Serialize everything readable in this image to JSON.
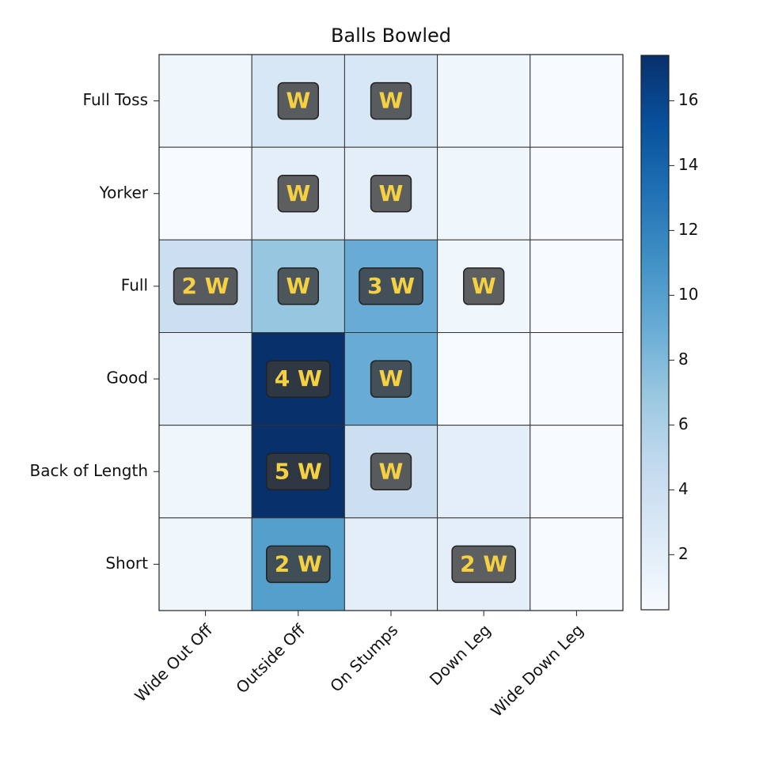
{
  "chart_data": {
    "type": "heatmap",
    "title": "Balls Bowled",
    "x_categories": [
      "Wide Out Off",
      "Outside Off",
      "On Stumps",
      "Down Leg",
      "Wide Down Leg"
    ],
    "y_categories": [
      "Full Toss",
      "Yorker",
      "Full",
      "Good",
      "Back of Length",
      "Short"
    ],
    "values": [
      [
        1,
        3,
        3,
        1,
        0.3
      ],
      [
        0.3,
        2,
        2,
        1,
        0.3
      ],
      [
        4,
        7,
        9,
        1,
        0.3
      ],
      [
        2,
        17.4,
        9,
        0.5,
        0.3
      ],
      [
        1,
        17.4,
        4,
        2,
        0.3
      ],
      [
        1,
        10,
        2,
        2,
        0.3
      ]
    ],
    "annotations": [
      [
        null,
        "W",
        "W",
        null,
        null
      ],
      [
        null,
        "W",
        "W",
        null,
        null
      ],
      [
        "2 W",
        "W",
        "3 W",
        "W",
        null
      ],
      [
        null,
        "4 W",
        "W",
        null,
        null
      ],
      [
        null,
        "5 W",
        "W",
        null,
        null
      ],
      [
        null,
        "2 W",
        null,
        "2 W",
        null
      ]
    ],
    "colormap": "Blues",
    "zlim": [
      0.3,
      17.4
    ],
    "zticks": [
      2,
      4,
      6,
      8,
      10,
      12,
      14,
      16
    ]
  }
}
